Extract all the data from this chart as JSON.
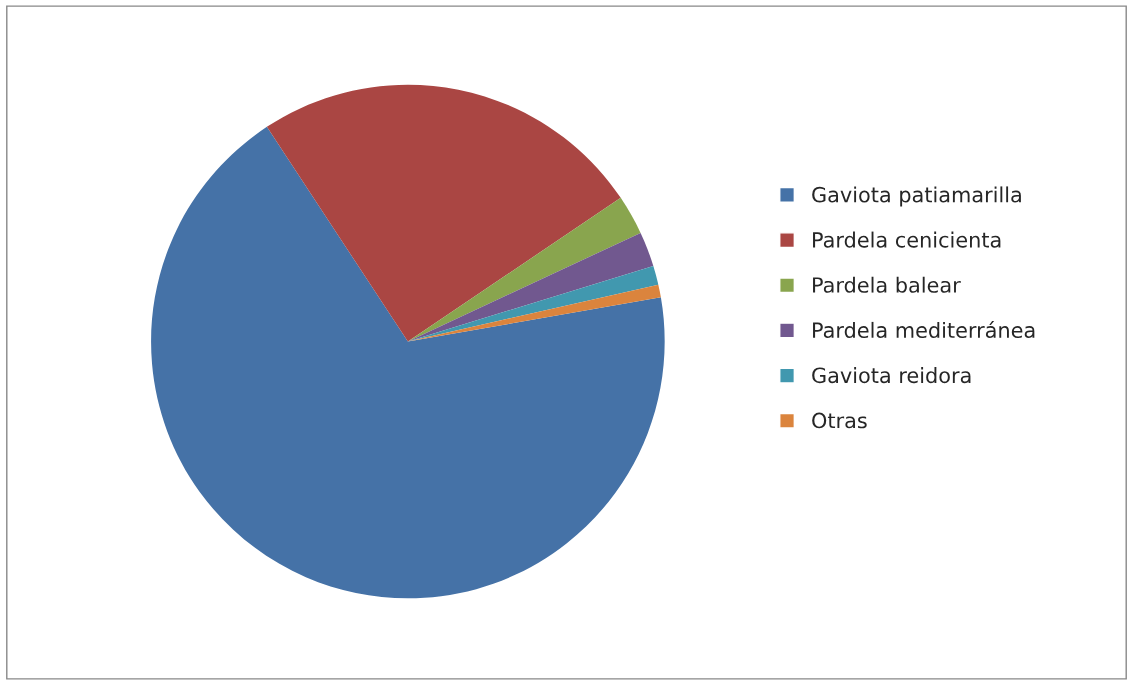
{
  "chart_data": {
    "type": "pie",
    "categories": [
      "Gaviota patiamarilla",
      "Pardela cenicienta",
      "Pardela balear",
      "Pardela mediterránea",
      "Gaviota reidora",
      "Otras"
    ],
    "values": [
      68.5,
      24.8,
      2.5,
      2.2,
      1.2,
      0.8
    ],
    "colors": [
      "#4572a7",
      "#aa4643",
      "#89a54e",
      "#71588f",
      "#4198af",
      "#db843d"
    ],
    "legend": "right"
  }
}
